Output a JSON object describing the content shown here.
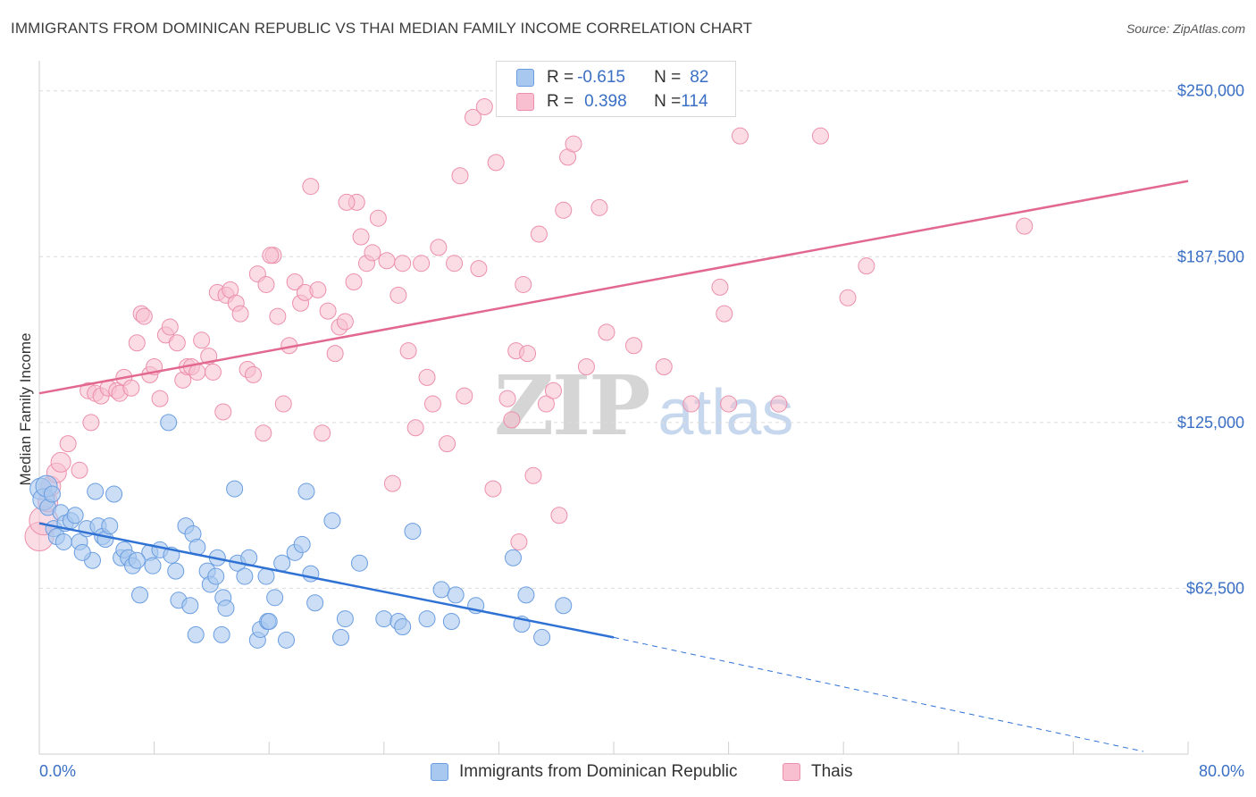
{
  "header": {
    "title": "IMMIGRANTS FROM DOMINICAN REPUBLIC VS THAI MEDIAN FAMILY INCOME CORRELATION CHART",
    "source": "Source: ZipAtlas.com"
  },
  "watermark": {
    "zip": "ZIP",
    "atlas": "atlas"
  },
  "legend": {
    "series1": {
      "r_label": "R = ",
      "r_value": "-0.615",
      "n_label": "N = ",
      "n_value": "82"
    },
    "series2": {
      "r_label": "R = ",
      "r_value": "0.398",
      "n_label": "N = ",
      "n_value": "114"
    }
  },
  "bottom_legend": {
    "series1_label": "Immigrants from Dominican Republic",
    "series2_label": "Thais"
  },
  "colors": {
    "blue_fill": "#a9c8ef",
    "blue_stroke": "#6a9de0",
    "blue_line": "#2f72d4",
    "pink_fill": "#f7bfd0",
    "pink_stroke": "#ec8fac",
    "pink_line": "#e2688f",
    "grid": "#dcdcdc",
    "tick_text": "#3a6fc4"
  },
  "chart_data": {
    "type": "scatter",
    "title": "IMMIGRANTS FROM DOMINICAN REPUBLIC VS THAI MEDIAN FAMILY INCOME CORRELATION CHART",
    "xlabel": "",
    "ylabel": "Median Family Income",
    "xlim": [
      0,
      80
    ],
    "ylim": [
      0,
      260000
    ],
    "x_tick_labels": [
      "0.0%",
      "80.0%"
    ],
    "y_ticks": [
      62500,
      125000,
      187500,
      250000
    ],
    "y_tick_labels": [
      "$62,500",
      "$125,000",
      "$187,500",
      "$250,000"
    ],
    "grid": true,
    "legend_position": "top-center",
    "series": [
      {
        "name": "Immigrants from Dominican Republic",
        "color": "#6a9de0",
        "r": -0.615,
        "n": 82,
        "trend": {
          "x": [
            0,
            40
          ],
          "y": [
            87000,
            44000
          ],
          "dashed_to": [
            80,
            1000
          ]
        },
        "points": [
          [
            0.1,
            100000
          ],
          [
            0.3,
            96000
          ],
          [
            0.5,
            101000
          ],
          [
            0.6,
            93000
          ],
          [
            0.9,
            98000
          ],
          [
            1.0,
            85000
          ],
          [
            1.2,
            82000
          ],
          [
            1.5,
            91000
          ],
          [
            1.7,
            80000
          ],
          [
            1.8,
            87000
          ],
          [
            2.2,
            88000
          ],
          [
            2.5,
            90000
          ],
          [
            2.8,
            80000
          ],
          [
            3.3,
            85000
          ],
          [
            3.7,
            73000
          ],
          [
            3.9,
            99000
          ],
          [
            4.1,
            86000
          ],
          [
            4.4,
            82000
          ],
          [
            4.6,
            81000
          ],
          [
            4.9,
            86000
          ],
          [
            5.2,
            98000
          ],
          [
            5.7,
            74000
          ],
          [
            5.9,
            77000
          ],
          [
            6.2,
            74000
          ],
          [
            6.5,
            71000
          ],
          [
            7.0,
            60000
          ],
          [
            7.7,
            76000
          ],
          [
            7.9,
            71000
          ],
          [
            8.4,
            77000
          ],
          [
            9.0,
            125000
          ],
          [
            9.5,
            69000
          ],
          [
            9.7,
            58000
          ],
          [
            10.2,
            86000
          ],
          [
            10.5,
            56000
          ],
          [
            10.7,
            83000
          ],
          [
            10.9,
            45000
          ],
          [
            11.0,
            78000
          ],
          [
            11.7,
            69000
          ],
          [
            11.9,
            64000
          ],
          [
            12.3,
            67000
          ],
          [
            12.4,
            74000
          ],
          [
            12.7,
            45000
          ],
          [
            12.8,
            59000
          ],
          [
            13.0,
            55000
          ],
          [
            13.6,
            100000
          ],
          [
            13.8,
            72000
          ],
          [
            14.3,
            67000
          ],
          [
            14.6,
            74000
          ],
          [
            15.2,
            43000
          ],
          [
            15.4,
            47000
          ],
          [
            15.8,
            67000
          ],
          [
            15.9,
            50000
          ],
          [
            16.0,
            50000
          ],
          [
            16.4,
            59000
          ],
          [
            16.9,
            72000
          ],
          [
            17.2,
            43000
          ],
          [
            17.8,
            76000
          ],
          [
            18.3,
            79000
          ],
          [
            18.6,
            99000
          ],
          [
            18.9,
            68000
          ],
          [
            19.2,
            57000
          ],
          [
            20.4,
            88000
          ],
          [
            21.0,
            44000
          ],
          [
            21.3,
            51000
          ],
          [
            22.3,
            72000
          ],
          [
            24.0,
            51000
          ],
          [
            25.0,
            50000
          ],
          [
            25.3,
            48000
          ],
          [
            26.0,
            84000
          ],
          [
            27.0,
            51000
          ],
          [
            28.0,
            62000
          ],
          [
            28.7,
            50000
          ],
          [
            29.0,
            60000
          ],
          [
            30.4,
            56000
          ],
          [
            33.0,
            74000
          ],
          [
            33.9,
            60000
          ],
          [
            33.6,
            49000
          ],
          [
            35.0,
            44000
          ],
          [
            36.5,
            56000
          ],
          [
            9.2,
            75000
          ],
          [
            6.8,
            73000
          ],
          [
            3.0,
            76000
          ]
        ]
      },
      {
        "name": "Thais",
        "color": "#ec8fac",
        "r": 0.398,
        "n": 114,
        "trend": {
          "x": [
            0,
            80
          ],
          "y": [
            136000,
            216000
          ]
        },
        "points": [
          [
            0.0,
            82000
          ],
          [
            0.3,
            88000
          ],
          [
            0.6,
            95000
          ],
          [
            0.8,
            101000
          ],
          [
            1.2,
            106000
          ],
          [
            1.5,
            110000
          ],
          [
            2.0,
            117000
          ],
          [
            2.8,
            107000
          ],
          [
            3.4,
            137000
          ],
          [
            3.6,
            125000
          ],
          [
            3.9,
            136000
          ],
          [
            4.3,
            135000
          ],
          [
            4.8,
            138000
          ],
          [
            5.4,
            137000
          ],
          [
            5.6,
            136000
          ],
          [
            5.9,
            142000
          ],
          [
            6.4,
            138000
          ],
          [
            6.8,
            155000
          ],
          [
            7.1,
            166000
          ],
          [
            7.3,
            165000
          ],
          [
            7.7,
            143000
          ],
          [
            8.0,
            146000
          ],
          [
            8.4,
            134000
          ],
          [
            8.8,
            158000
          ],
          [
            9.1,
            161000
          ],
          [
            9.6,
            155000
          ],
          [
            10.0,
            141000
          ],
          [
            10.3,
            146000
          ],
          [
            10.6,
            146000
          ],
          [
            11.0,
            144000
          ],
          [
            11.3,
            156000
          ],
          [
            11.8,
            150000
          ],
          [
            12.1,
            144000
          ],
          [
            12.4,
            174000
          ],
          [
            12.8,
            129000
          ],
          [
            13.0,
            173000
          ],
          [
            13.3,
            175000
          ],
          [
            13.7,
            170000
          ],
          [
            14.0,
            166000
          ],
          [
            14.5,
            145000
          ],
          [
            14.9,
            143000
          ],
          [
            15.2,
            181000
          ],
          [
            15.6,
            121000
          ],
          [
            15.8,
            177000
          ],
          [
            16.3,
            188000
          ],
          [
            16.6,
            165000
          ],
          [
            17.0,
            132000
          ],
          [
            17.4,
            154000
          ],
          [
            17.8,
            178000
          ],
          [
            18.2,
            170000
          ],
          [
            18.5,
            174000
          ],
          [
            18.9,
            214000
          ],
          [
            19.4,
            175000
          ],
          [
            19.7,
            121000
          ],
          [
            20.1,
            167000
          ],
          [
            20.6,
            151000
          ],
          [
            20.9,
            161000
          ],
          [
            21.3,
            163000
          ],
          [
            21.9,
            178000
          ],
          [
            22.1,
            208000
          ],
          [
            22.4,
            195000
          ],
          [
            22.8,
            185000
          ],
          [
            23.2,
            189000
          ],
          [
            23.6,
            202000
          ],
          [
            24.2,
            186000
          ],
          [
            24.6,
            102000
          ],
          [
            25.0,
            173000
          ],
          [
            25.3,
            185000
          ],
          [
            25.7,
            152000
          ],
          [
            26.2,
            123000
          ],
          [
            26.6,
            185000
          ],
          [
            27.0,
            142000
          ],
          [
            27.4,
            132000
          ],
          [
            27.8,
            191000
          ],
          [
            28.4,
            117000
          ],
          [
            28.9,
            185000
          ],
          [
            29.3,
            218000
          ],
          [
            29.6,
            135000
          ],
          [
            30.2,
            240000
          ],
          [
            30.6,
            183000
          ],
          [
            31.0,
            244000
          ],
          [
            31.6,
            100000
          ],
          [
            31.8,
            223000
          ],
          [
            32.6,
            134000
          ],
          [
            32.9,
            126000
          ],
          [
            33.2,
            152000
          ],
          [
            33.7,
            177000
          ],
          [
            34.0,
            151000
          ],
          [
            34.4,
            105000
          ],
          [
            34.8,
            196000
          ],
          [
            35.3,
            132000
          ],
          [
            35.8,
            137000
          ],
          [
            36.2,
            90000
          ],
          [
            36.5,
            205000
          ],
          [
            36.8,
            225000
          ],
          [
            37.2,
            230000
          ],
          [
            38.1,
            146000
          ],
          [
            39.0,
            206000
          ],
          [
            39.5,
            159000
          ],
          [
            41.4,
            154000
          ],
          [
            43.5,
            146000
          ],
          [
            45.4,
            132000
          ],
          [
            47.4,
            176000
          ],
          [
            47.7,
            166000
          ],
          [
            48.0,
            132000
          ],
          [
            48.8,
            233000
          ],
          [
            51.5,
            132000
          ],
          [
            54.4,
            233000
          ],
          [
            56.3,
            172000
          ],
          [
            57.6,
            184000
          ],
          [
            68.6,
            199000
          ],
          [
            33.4,
            80000
          ],
          [
            21.4,
            208000
          ],
          [
            16.1,
            188000
          ]
        ]
      }
    ]
  }
}
